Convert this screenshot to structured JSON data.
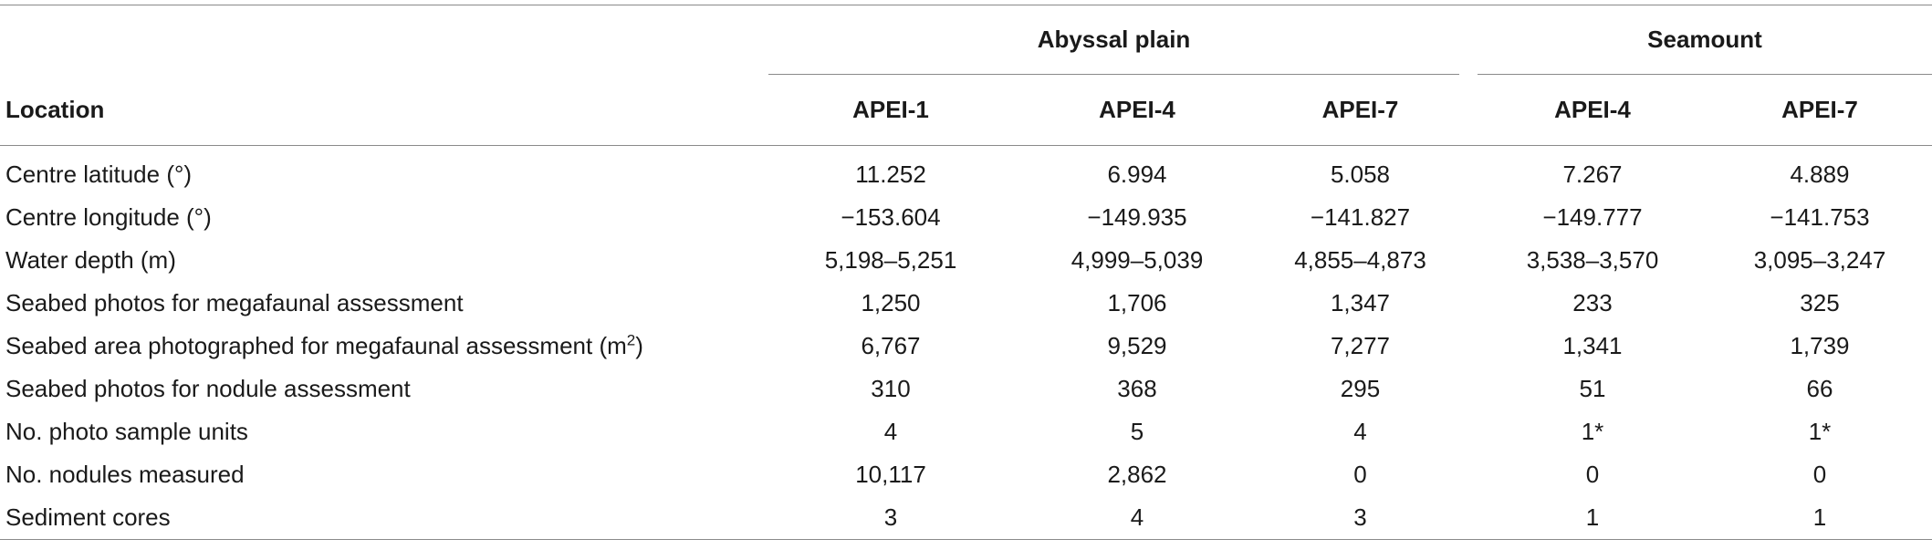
{
  "table": {
    "groups": {
      "abyssal_plain": "Abyssal plain",
      "seamount": "Seamount"
    },
    "header": {
      "location": "Location",
      "columns": [
        "APEI-1",
        "APEI-4",
        "APEI-7",
        "APEI-4",
        "APEI-7"
      ]
    },
    "rows": [
      {
        "label": "Centre latitude (°)",
        "values": [
          "11.252",
          "6.994",
          "5.058",
          "7.267",
          "4.889"
        ]
      },
      {
        "label": "Centre longitude (°)",
        "values": [
          "−153.604",
          "−149.935",
          "−141.827",
          "−149.777",
          "−141.753"
        ]
      },
      {
        "label": "Water depth (m)",
        "values": [
          "5,198–5,251",
          "4,999–5,039",
          "4,855–4,873",
          "3,538–3,570",
          "3,095–3,247"
        ]
      },
      {
        "label": "Seabed photos for megafaunal assessment",
        "values": [
          "1,250",
          "1,706",
          "1,347",
          "233",
          "325"
        ]
      },
      {
        "label": "Seabed area photographed for megafaunal assessment (m",
        "label_sup": "2",
        "label_end": ")",
        "values": [
          "6,767",
          "9,529",
          "7,277",
          "1,341",
          "1,739"
        ]
      },
      {
        "label": "Seabed photos for nodule assessment",
        "values": [
          "310",
          "368",
          "295",
          "51",
          "66"
        ]
      },
      {
        "label": "No. photo sample units",
        "values": [
          "4",
          "5",
          "4",
          "1*",
          "1*"
        ]
      },
      {
        "label": "No. nodules measured",
        "values": [
          "10,117",
          "2,862",
          "0",
          "0",
          "0"
        ]
      },
      {
        "label": "Sediment cores",
        "values": [
          "3",
          "4",
          "3",
          "1",
          "1"
        ]
      }
    ]
  }
}
